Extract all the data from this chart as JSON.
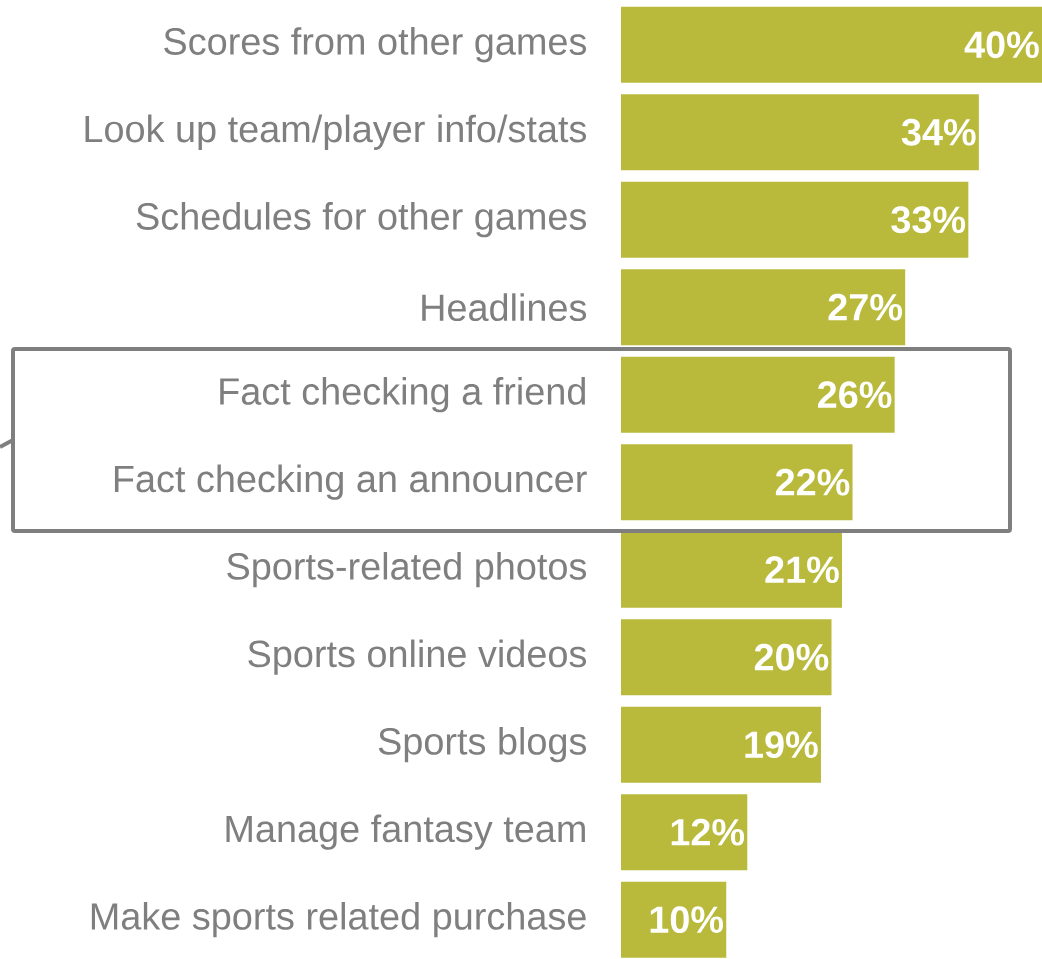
{
  "chart_data": {
    "type": "bar",
    "orientation": "horizontal",
    "categories": [
      "Scores from other games",
      "Look up team/player info/stats",
      "Schedules for other games",
      "Headlines",
      "Fact checking a friend",
      "Fact checking an announcer",
      "Sports-related photos",
      "Sports online videos",
      "Sports blogs",
      "Manage fantasy team",
      "Make sports related purchase"
    ],
    "values": [
      40,
      34,
      33,
      27,
      26,
      22,
      21,
      20,
      19,
      12,
      10
    ],
    "value_labels": [
      "40%",
      "34%",
      "33%",
      "27%",
      "26%",
      "22%",
      "21%",
      "20%",
      "19%",
      "12%",
      "10%"
    ],
    "color": "#b9ba3c"
  }
}
